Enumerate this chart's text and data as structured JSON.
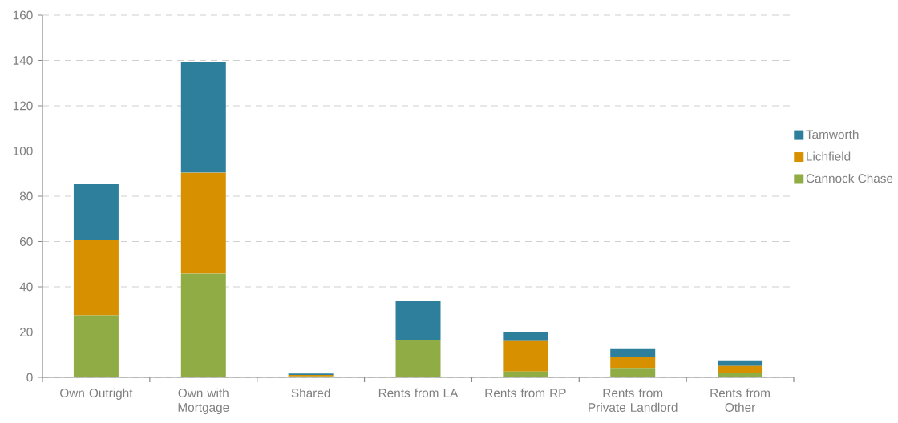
{
  "chart_data": {
    "type": "bar",
    "stacked": true,
    "categories": [
      "Own Outright",
      "Own with Mortgage",
      "Shared",
      "Rents from LA",
      "Rents from RP",
      "Rents from Private Landlord",
      "Rents from Other"
    ],
    "series": [
      {
        "name": "Cannock Chase",
        "color": "#8fad44",
        "values": [
          27.4,
          45.8,
          0.4,
          16.3,
          2.6,
          4.2,
          1.9
        ]
      },
      {
        "name": "Lichfield",
        "color": "#d69000",
        "values": [
          33.5,
          44.6,
          0.7,
          0,
          13.4,
          4.8,
          3.1
        ]
      },
      {
        "name": "Tamworth",
        "color": "#2e7f9b",
        "values": [
          24.4,
          48.7,
          0.6,
          17.3,
          4.2,
          3.5,
          2.5
        ]
      }
    ],
    "ylim": [
      0,
      160
    ],
    "yticks": [
      0,
      20,
      40,
      60,
      80,
      100,
      120,
      140,
      160
    ],
    "grid": "y",
    "legend": "right"
  }
}
